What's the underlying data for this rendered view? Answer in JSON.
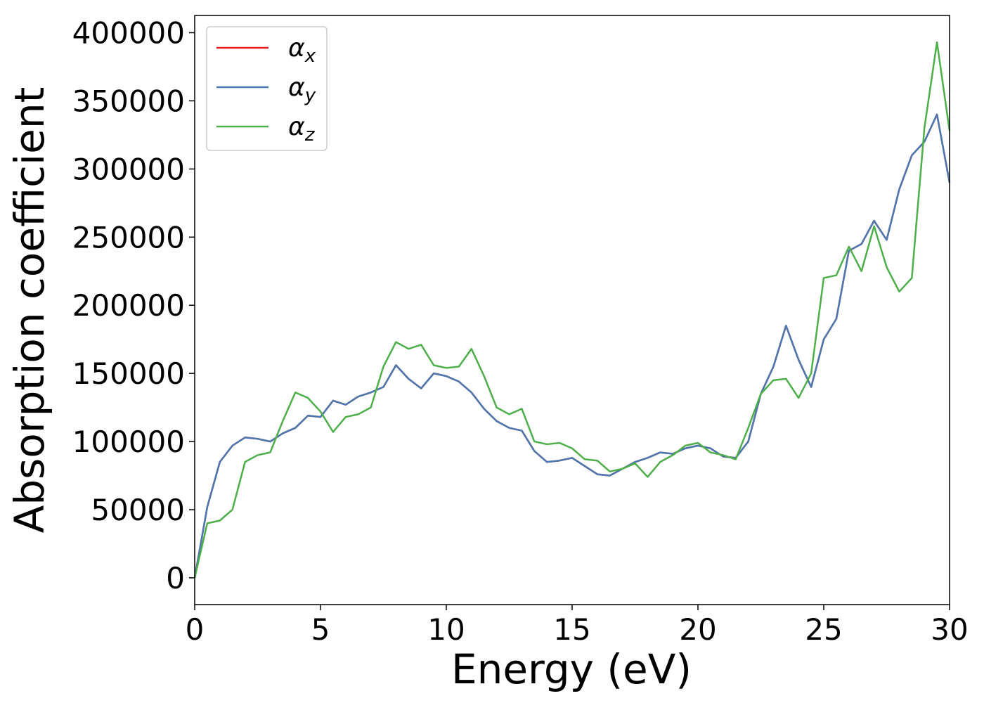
{
  "chart_data": {
    "type": "line",
    "xlabel": "Energy (eV)",
    "ylabel": "Absorption coefficient",
    "x": [
      0,
      0.5,
      1,
      1.5,
      2,
      2.5,
      3,
      3.5,
      4,
      4.5,
      5,
      5.5,
      6,
      6.5,
      7,
      7.5,
      8,
      8.5,
      9,
      9.5,
      10,
      10.5,
      11,
      11.5,
      12,
      12.5,
      13,
      13.5,
      14,
      14.5,
      15,
      15.5,
      16,
      16.5,
      17,
      17.5,
      18,
      18.5,
      19,
      19.5,
      20,
      20.5,
      21,
      21.5,
      22,
      22.5,
      23,
      23.5,
      24,
      24.5,
      25,
      25.5,
      26,
      26.5,
      27,
      27.5,
      28,
      28.5,
      29,
      29.5,
      30
    ],
    "series": [
      {
        "name": "αx",
        "color": "#e41a1c",
        "values": [
          0,
          52000,
          85000,
          97000,
          103000,
          102000,
          100000,
          106000,
          110000,
          119000,
          118000,
          130000,
          127000,
          133000,
          136000,
          140000,
          156000,
          146000,
          139000,
          150000,
          148000,
          144000,
          136000,
          124000,
          115000,
          110000,
          108000,
          93000,
          85000,
          86000,
          88000,
          82000,
          76000,
          75000,
          80000,
          85000,
          88000,
          92000,
          91000,
          95000,
          97000,
          95000,
          89000,
          88000,
          100000,
          135000,
          155000,
          185000,
          160000,
          140000,
          175000,
          190000,
          240000,
          245000,
          262000,
          248000,
          285000,
          310000,
          320000,
          340000,
          290000
        ]
      },
      {
        "name": "αy",
        "color": "#4a78b0",
        "values": [
          0,
          52000,
          85000,
          97000,
          103000,
          102000,
          100000,
          106000,
          110000,
          119000,
          118000,
          130000,
          127000,
          133000,
          136000,
          140000,
          156000,
          146000,
          139000,
          150000,
          148000,
          144000,
          136000,
          124000,
          115000,
          110000,
          108000,
          93000,
          85000,
          86000,
          88000,
          82000,
          76000,
          75000,
          80000,
          85000,
          88000,
          92000,
          91000,
          95000,
          97000,
          95000,
          89000,
          88000,
          100000,
          135000,
          155000,
          185000,
          160000,
          140000,
          175000,
          190000,
          240000,
          245000,
          262000,
          248000,
          285000,
          310000,
          320000,
          340000,
          290000
        ]
      },
      {
        "name": "αz",
        "color": "#4daf4a",
        "values": [
          0,
          40000,
          42000,
          50000,
          85000,
          90000,
          92000,
          115000,
          136000,
          132000,
          122000,
          107000,
          118000,
          120000,
          125000,
          155000,
          173000,
          168000,
          171000,
          156000,
          154000,
          155000,
          168000,
          148000,
          125000,
          120000,
          124000,
          100000,
          98000,
          99000,
          95000,
          87000,
          86000,
          78000,
          80000,
          84000,
          74000,
          85000,
          90000,
          97000,
          99000,
          92000,
          90000,
          87000,
          110000,
          135000,
          145000,
          146000,
          132000,
          150000,
          220000,
          222000,
          243000,
          225000,
          258000,
          228000,
          210000,
          220000,
          330000,
          393000,
          328000
        ]
      }
    ],
    "xlim": [
      0,
      30
    ],
    "xticks": [
      0,
      5,
      10,
      15,
      20,
      25,
      30
    ],
    "ylim": [
      -19650,
      412650
    ],
    "yticks": [
      0,
      50000,
      100000,
      150000,
      200000,
      250000,
      300000,
      350000,
      400000
    ],
    "legend": "upper left",
    "grid": false
  }
}
